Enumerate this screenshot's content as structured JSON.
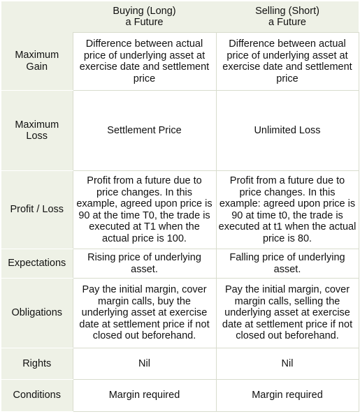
{
  "headers": {
    "col1": "Buying (Long)\na Future",
    "col2": "Selling (Short)\na Future"
  },
  "rows": [
    {
      "label": "Maximum\nGain",
      "long": "Difference between actual price of underlying asset at exercise date and settlement price",
      "short": "Difference between actual price of underlying asset at exercise date and settlement price"
    },
    {
      "label": "Maximum\nLoss",
      "long": "Settlement Price",
      "short": "Unlimited Loss"
    },
    {
      "label": "Profit / Loss",
      "long": "Profit from a future due to price changes. In this example, agreed upon price is 90 at the time T0, the trade is executed at T1 when the actual price is 100.",
      "short": "Profit from a future due to price changes. In this example: agreed upon price is 90 at time t0, the trade is executed at t1 when the actual price is 80."
    },
    {
      "label": "Expectations",
      "long": "Rising price of underlying asset.",
      "short": "Falling price of underlying asset."
    },
    {
      "label": "Obligations",
      "long": "Pay the initial margin, cover margin calls, buy the underlying asset at exercise date at settlement price if not closed out beforehand.",
      "short": "Pay the initial margin, cover margin calls, selling the underlying asset at exercise date at settlement price if not closed out beforehand."
    },
    {
      "label": "Rights",
      "long": "Nil",
      "short": "Nil"
    },
    {
      "label": "Conditions",
      "long": "Margin required",
      "short": "Margin required"
    }
  ]
}
